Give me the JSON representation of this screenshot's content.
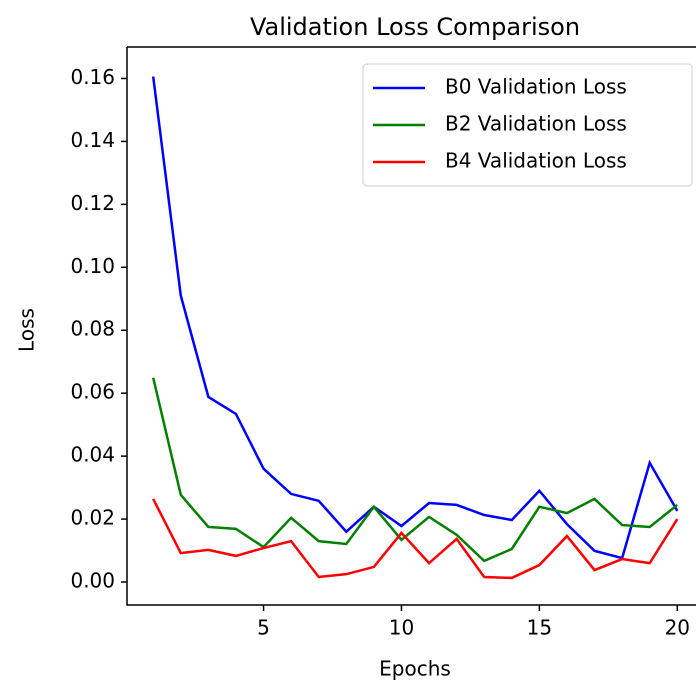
{
  "chart_data": {
    "type": "line",
    "title": "Validation Loss Comparison",
    "xlabel": "Epochs",
    "ylabel": "Loss",
    "x": [
      1,
      2,
      3,
      4,
      5,
      6,
      7,
      8,
      9,
      10,
      11,
      12,
      13,
      14,
      15,
      16,
      17,
      18,
      19,
      20
    ],
    "series": [
      {
        "name": "B0 Validation Loss",
        "color": "#0000ff",
        "values": [
          0.1606,
          0.091,
          0.0588,
          0.0534,
          0.036,
          0.028,
          0.0258,
          0.016,
          0.0239,
          0.0178,
          0.0251,
          0.0245,
          0.0213,
          0.0197,
          0.029,
          0.0184,
          0.0099,
          0.0076,
          0.0379,
          0.0226
        ]
      },
      {
        "name": "B2 Validation Loss",
        "color": "#008000",
        "values": [
          0.0649,
          0.0277,
          0.0175,
          0.0169,
          0.0111,
          0.0204,
          0.013,
          0.0121,
          0.0239,
          0.0134,
          0.0207,
          0.015,
          0.0067,
          0.0105,
          0.0239,
          0.0219,
          0.0264,
          0.0181,
          0.0175,
          0.0245
        ]
      },
      {
        "name": "B4 Validation Loss",
        "color": "#ff0000",
        "values": [
          0.0264,
          0.0092,
          0.0102,
          0.0083,
          0.0108,
          0.013,
          0.0016,
          0.0025,
          0.0048,
          0.0156,
          0.006,
          0.0137,
          0.0016,
          0.0013,
          0.0054,
          0.0146,
          0.0038,
          0.0073,
          0.006,
          0.02
        ]
      }
    ],
    "xlim": [
      0.05,
      20.95
    ],
    "ylim": [
      -0.0073,
      0.17
    ],
    "xticks": [
      5,
      10,
      15,
      20
    ],
    "yticks": [
      {
        "value": 0,
        "label": "0.00"
      },
      {
        "value": 0.02,
        "label": "0.02"
      },
      {
        "value": 0.04,
        "label": "0.04"
      },
      {
        "value": 0.06,
        "label": "0.06"
      },
      {
        "value": 0.08,
        "label": "0.08"
      },
      {
        "value": 0.1,
        "label": "0.10"
      },
      {
        "value": 0.12,
        "label": "0.12"
      },
      {
        "value": 0.14,
        "label": "0.14"
      },
      {
        "value": 0.16,
        "label": "0.16"
      }
    ],
    "legend": "upper right"
  }
}
